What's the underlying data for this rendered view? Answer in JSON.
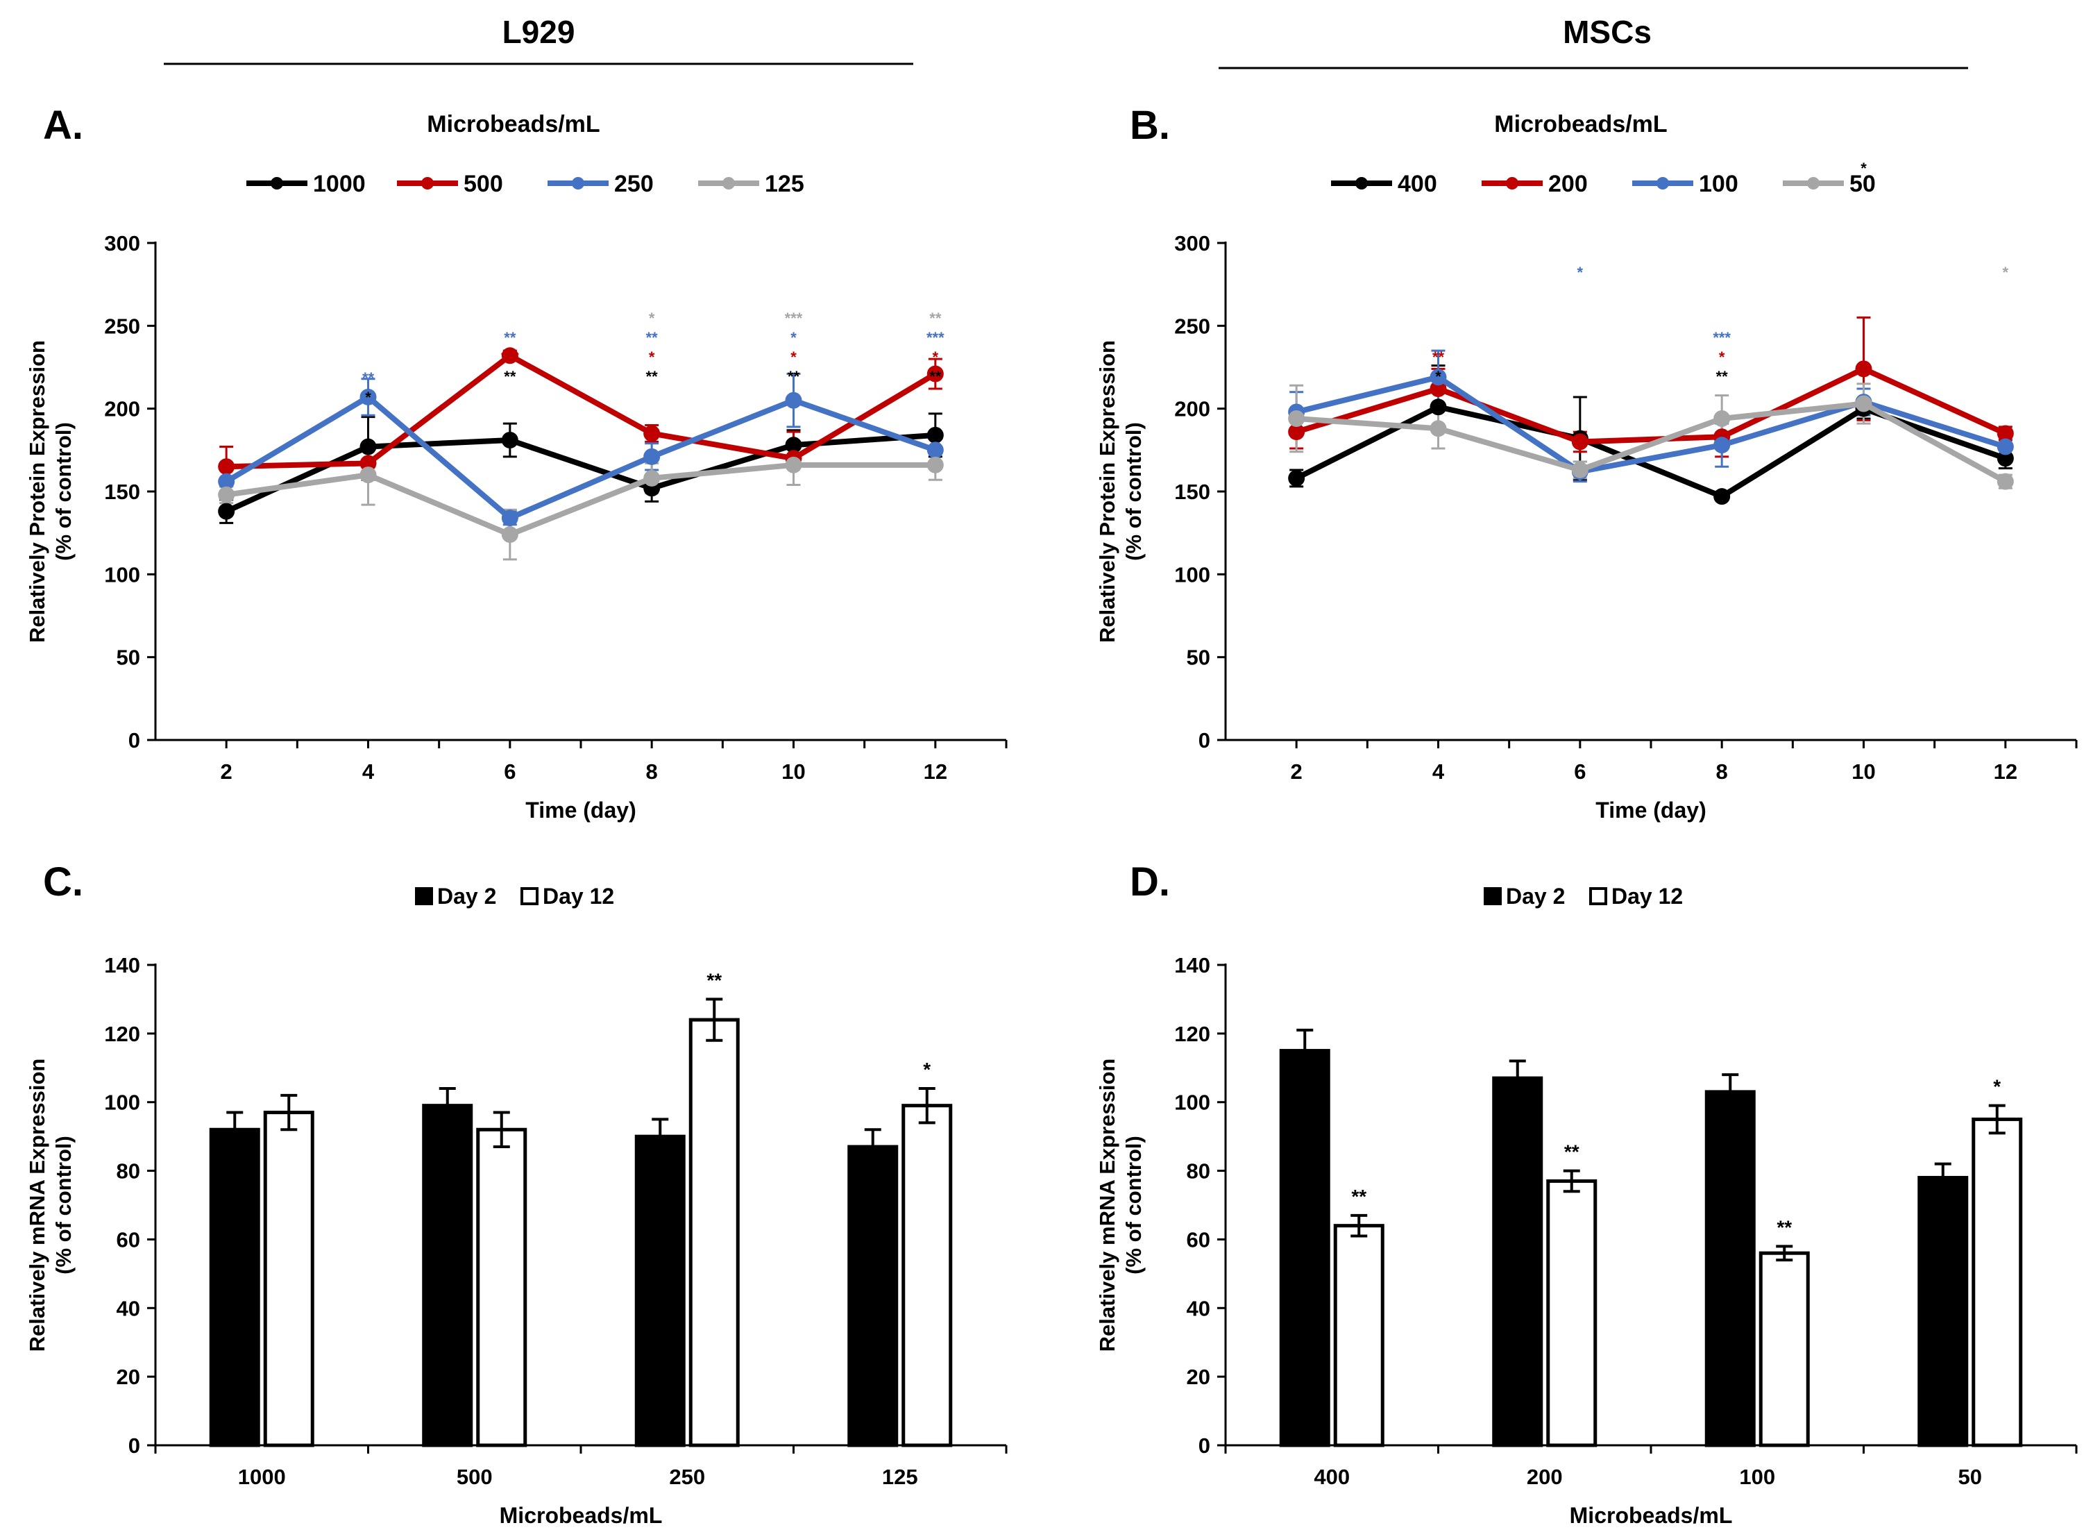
{
  "headers": {
    "left": "L929",
    "right": "MSCs"
  },
  "colors": {
    "black": "#000000",
    "red": "#c00000",
    "blue": "#4472c4",
    "gray": "#a6a6a6"
  },
  "chart_data": [
    {
      "id": "A",
      "panel_label": "A.",
      "type": "line",
      "legend_title": "Microbeads/mL",
      "xlabel": "Time (day)",
      "ylabel": [
        "Relatively Protein Expression",
        "(% of control)"
      ],
      "x": [
        2,
        4,
        6,
        8,
        10,
        12
      ],
      "xlim": [
        1,
        13
      ],
      "ylim": [
        0,
        300
      ],
      "yticks": [
        0,
        50,
        100,
        150,
        200,
        250,
        300
      ],
      "series": [
        {
          "name": "1000",
          "color": "#000000",
          "values": [
            138,
            177,
            181,
            152,
            178,
            184
          ],
          "errors": [
            7,
            18,
            10,
            8,
            9,
            13
          ]
        },
        {
          "name": "500",
          "color": "#c00000",
          "values": [
            165,
            167,
            232,
            185,
            170,
            221
          ],
          "errors": [
            12,
            10,
            3,
            5,
            16,
            9
          ]
        },
        {
          "name": "250",
          "color": "#4472c4",
          "values": [
            156,
            207,
            134,
            171,
            205,
            175
          ],
          "errors": [
            8,
            11,
            4,
            8,
            16,
            7
          ]
        },
        {
          "name": "125",
          "color": "#a6a6a6",
          "values": [
            148,
            160,
            124,
            158,
            166,
            166
          ],
          "errors": [
            5,
            18,
            15,
            9,
            12,
            9
          ]
        }
      ],
      "annotations": [
        {
          "x": 4,
          "labels": [
            {
              "text": "**",
              "color": "#4472c4"
            },
            {
              "text": "*",
              "color": "#000000"
            }
          ]
        },
        {
          "x": 6,
          "labels": [
            {
              "text": "**",
              "color": "#4472c4"
            },
            {
              "text": "***",
              "color": "#c00000"
            },
            {
              "text": "**",
              "color": "#000000"
            }
          ]
        },
        {
          "x": 8,
          "labels": [
            {
              "text": "*",
              "color": "#a6a6a6"
            },
            {
              "text": "**",
              "color": "#4472c4"
            },
            {
              "text": "*",
              "color": "#c00000"
            },
            {
              "text": "**",
              "color": "#000000"
            }
          ]
        },
        {
          "x": 10,
          "labels": [
            {
              "text": "***",
              "color": "#a6a6a6"
            },
            {
              "text": "*",
              "color": "#4472c4"
            },
            {
              "text": "*",
              "color": "#c00000"
            },
            {
              "text": "**",
              "color": "#000000"
            }
          ]
        },
        {
          "x": 12,
          "labels": [
            {
              "text": "**",
              "color": "#a6a6a6"
            },
            {
              "text": "***",
              "color": "#4472c4"
            },
            {
              "text": "*",
              "color": "#c00000"
            },
            {
              "text": "**",
              "color": "#000000"
            }
          ]
        }
      ]
    },
    {
      "id": "B",
      "panel_label": "B.",
      "type": "line",
      "legend_title": "Microbeads/mL",
      "xlabel": "Time (day)",
      "ylabel": [
        "Relatively Protein Expression",
        "(% of control)"
      ],
      "x": [
        2,
        4,
        6,
        8,
        10,
        12
      ],
      "xlim": [
        1,
        13
      ],
      "ylim": [
        0,
        300
      ],
      "yticks": [
        0,
        50,
        100,
        150,
        200,
        250,
        300
      ],
      "series": [
        {
          "name": "400",
          "color": "#000000",
          "values": [
            158,
            201,
            182,
            147,
            200,
            170
          ],
          "errors": [
            5,
            25,
            25,
            2,
            6,
            6
          ]
        },
        {
          "name": "200",
          "color": "#c00000",
          "values": [
            186,
            212,
            180,
            183,
            224,
            185
          ],
          "errors": [
            10,
            12,
            6,
            12,
            31,
            4
          ]
        },
        {
          "name": "100",
          "color": "#4472c4",
          "values": [
            198,
            219,
            162,
            178,
            204,
            177
          ],
          "errors": [
            12,
            16,
            6,
            13,
            8,
            5
          ]
        },
        {
          "name": "50",
          "color": "#a6a6a6",
          "values": [
            194,
            188,
            163,
            194,
            203,
            156
          ],
          "errors": [
            20,
            12,
            5,
            14,
            12,
            4
          ]
        }
      ],
      "annotations": [
        {
          "x": 4,
          "labels": [
            {
              "text": "**",
              "color": "#c00000"
            },
            {
              "text": "*",
              "color": "#000000"
            }
          ]
        },
        {
          "x": 6,
          "labels": [
            {
              "text": "*",
              "color": "#4472c4"
            }
          ]
        },
        {
          "x": 8,
          "labels": [
            {
              "text": "***",
              "color": "#4472c4"
            },
            {
              "text": "*",
              "color": "#c00000"
            },
            {
              "text": "**",
              "color": "#000000"
            }
          ]
        },
        {
          "x": 10,
          "labels": [
            {
              "text": "*",
              "color": "#000000"
            }
          ]
        },
        {
          "x": 12,
          "labels": [
            {
              "text": "*",
              "color": "#a6a6a6"
            }
          ]
        }
      ]
    },
    {
      "id": "C",
      "panel_label": "C.",
      "type": "bar",
      "xlabel": "Microbeads/mL",
      "ylabel": [
        "Relatively mRNA Expression",
        "(% of control)"
      ],
      "categories": [
        "1000",
        "500",
        "250",
        "125"
      ],
      "ylim": [
        0,
        140
      ],
      "yticks": [
        0,
        20,
        40,
        60,
        80,
        100,
        120,
        140
      ],
      "series": [
        {
          "name": "Day 2",
          "fill": "#000000",
          "values": [
            92,
            99,
            90,
            87
          ],
          "errors": [
            5,
            5,
            5,
            5
          ],
          "sig": [
            "",
            "",
            "",
            ""
          ]
        },
        {
          "name": "Day 12",
          "fill": "#ffffff",
          "values": [
            97,
            92,
            124,
            99
          ],
          "errors": [
            5,
            5,
            6,
            5
          ],
          "sig": [
            "",
            "",
            "**",
            "*"
          ]
        }
      ]
    },
    {
      "id": "D",
      "panel_label": "D.",
      "type": "bar",
      "xlabel": "Microbeads/mL",
      "ylabel": [
        "Relatively mRNA Expression",
        "(% of control)"
      ],
      "categories": [
        "400",
        "200",
        "100",
        "50"
      ],
      "ylim": [
        0,
        140
      ],
      "yticks": [
        0,
        20,
        40,
        60,
        80,
        100,
        120,
        140
      ],
      "series": [
        {
          "name": "Day 2",
          "fill": "#000000",
          "values": [
            115,
            107,
            103,
            78
          ],
          "errors": [
            6,
            5,
            5,
            4
          ],
          "sig": [
            "",
            "",
            "",
            ""
          ]
        },
        {
          "name": "Day 12",
          "fill": "#ffffff",
          "values": [
            64,
            77,
            56,
            95
          ],
          "errors": [
            3,
            3,
            2,
            4
          ],
          "sig": [
            "**",
            "**",
            "**",
            "*"
          ]
        }
      ]
    }
  ]
}
